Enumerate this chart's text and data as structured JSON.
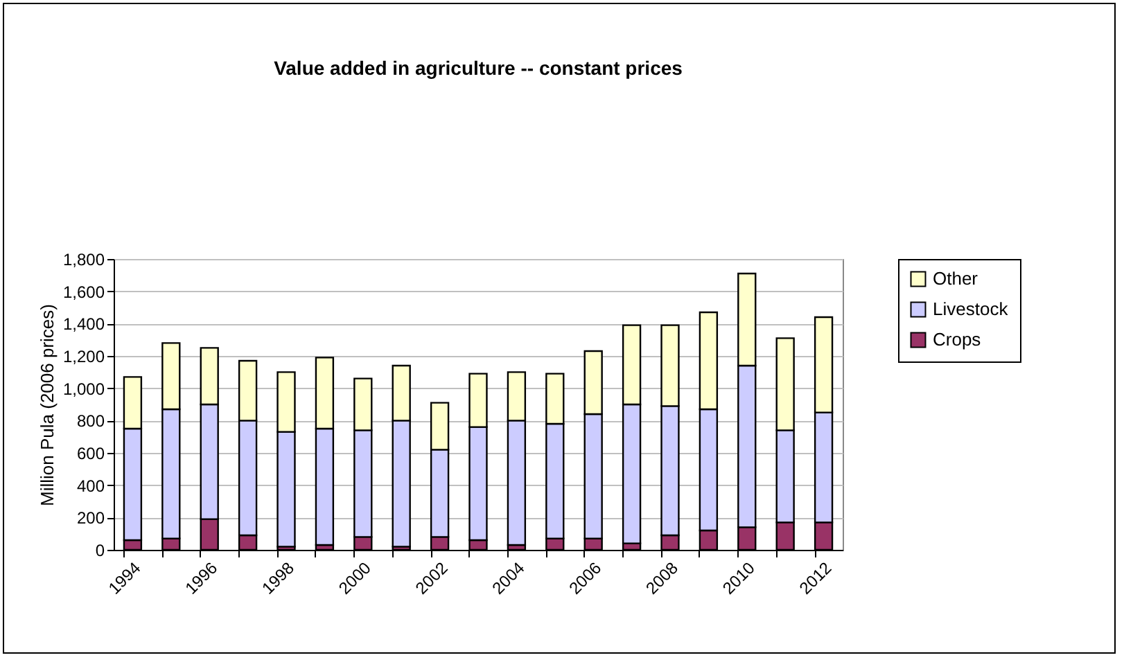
{
  "chart_data": {
    "type": "bar",
    "title": "Value added in agriculture -- constant prices",
    "ylabel": "Million Pula (2006 prices)",
    "categories": [
      "1994",
      null,
      "1996",
      null,
      "1998",
      null,
      "2000",
      null,
      "2002",
      null,
      "2004",
      null,
      "2006",
      null,
      "2008",
      null,
      "2010",
      null,
      "2012"
    ],
    "stacked": true,
    "series": [
      {
        "name": "Crops",
        "color": "#993366",
        "values": [
          60,
          70,
          190,
          90,
          20,
          30,
          80,
          20,
          80,
          60,
          30,
          70,
          70,
          40,
          90,
          120,
          140,
          170,
          170
        ]
      },
      {
        "name": "Livestock",
        "color": "#ccccff",
        "values": [
          690,
          800,
          710,
          710,
          710,
          720,
          660,
          780,
          540,
          700,
          770,
          710,
          770,
          860,
          800,
          750,
          1000,
          570,
          680
        ]
      },
      {
        "name": "Other",
        "color": "#ffffcc",
        "values": [
          320,
          410,
          350,
          370,
          370,
          440,
          320,
          340,
          290,
          330,
          300,
          310,
          390,
          490,
          500,
          600,
          570,
          570,
          590
        ]
      }
    ],
    "ylim": [
      0,
      1800
    ],
    "yticks": [
      0,
      200,
      400,
      600,
      800,
      {
        "value": 1000,
        "label": "1,000"
      },
      {
        "value": 1200,
        "label": "1,200"
      },
      {
        "value": 1400,
        "label": "1,400"
      },
      {
        "value": 1600,
        "label": "1,600"
      },
      {
        "value": 1800,
        "label": "1,800"
      }
    ],
    "grid": "y",
    "legend": "right"
  }
}
